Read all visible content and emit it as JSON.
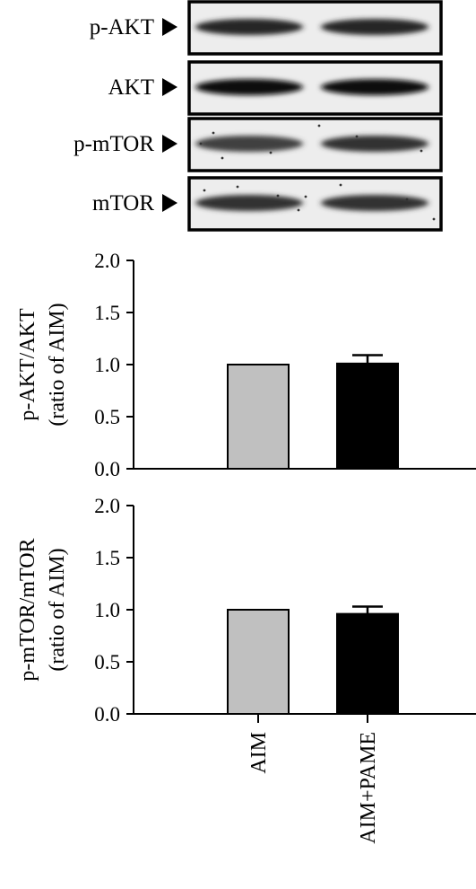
{
  "blots": [
    {
      "label": "p-AKT",
      "band_intensity": [
        0.85,
        0.85
      ]
    },
    {
      "label": "AKT",
      "band_intensity": [
        0.95,
        0.95
      ]
    },
    {
      "label": "p-mTOR",
      "band_intensity": [
        0.75,
        0.8
      ]
    },
    {
      "label": "mTOR",
      "band_intensity": [
        0.8,
        0.8
      ]
    }
  ],
  "chart_data": [
    {
      "type": "bar",
      "categories": [
        "AIM",
        "AIM+PAME"
      ],
      "values": [
        1.0,
        1.01
      ],
      "errors": [
        0,
        0.08
      ],
      "ylabel": [
        "p-AKT/AKT",
        "(ratio of AIM)"
      ],
      "ylim": [
        0,
        2.0
      ],
      "yticks": [
        "0.0",
        "0.5",
        "1.0",
        "1.5",
        "2.0"
      ],
      "colors": [
        "#c0c0c0",
        "#000000"
      ]
    },
    {
      "type": "bar",
      "categories": [
        "AIM",
        "AIM+PAME"
      ],
      "values": [
        1.0,
        0.96
      ],
      "errors": [
        0,
        0.07
      ],
      "ylabel": [
        "p-mTOR/mTOR",
        "(ratio of AIM)"
      ],
      "ylim": [
        0,
        2.0
      ],
      "yticks": [
        "0.0",
        "0.5",
        "1.0",
        "1.5",
        "2.0"
      ],
      "colors": [
        "#c0c0c0",
        "#000000"
      ]
    }
  ]
}
